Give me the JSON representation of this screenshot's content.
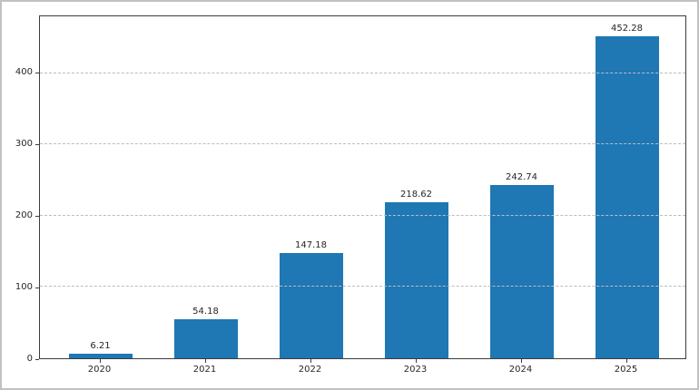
{
  "chart_data": {
    "type": "bar",
    "title": "",
    "xlabel": "",
    "ylabel": "",
    "categories": [
      "2020",
      "2021",
      "2022",
      "2023",
      "2024",
      "2025"
    ],
    "values": [
      6.21,
      54.18,
      147.18,
      218.62,
      242.74,
      452.28
    ],
    "bar_labels": [
      "6.21",
      "54.18",
      "147.18",
      "218.62",
      "242.74",
      "452.28"
    ],
    "ylim": [
      0,
      480
    ],
    "yticks": [
      0,
      100,
      200,
      300,
      400
    ],
    "ytick_labels": [
      "0",
      "100",
      "200",
      "300",
      "400"
    ],
    "grid": {
      "axis": "y",
      "style": "dashed",
      "on": true,
      "above_bars": true
    },
    "legend": {
      "visible": false
    },
    "colors": {
      "bar": "#1f77b4",
      "grid": "#bdbdbd",
      "text": "#262626",
      "spine": "#3c3c3c",
      "background": "#ffffff",
      "outer_border": "#c1c1c1"
    }
  }
}
